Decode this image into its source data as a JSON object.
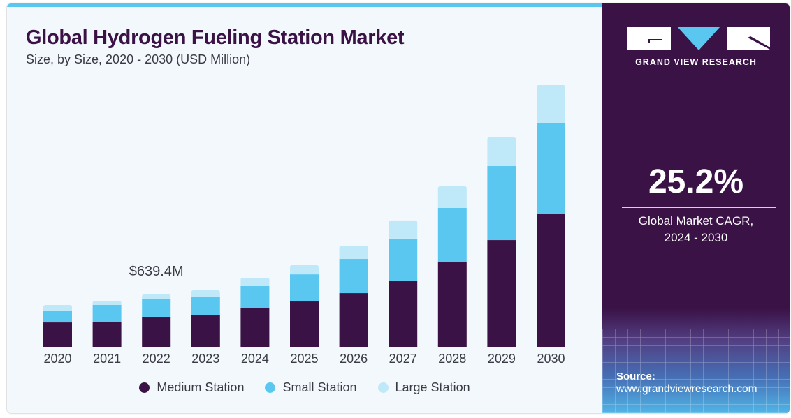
{
  "title": "Global Hydrogen Fueling Station Market",
  "subtitle": "Size, by Size, 2020 - 2030 (USD Million)",
  "brand": {
    "name": "GRAND VIEW RESEARCH",
    "accent": "#5ac7f0",
    "panel_color": "#3a1246"
  },
  "stat": {
    "value": "25.2%",
    "label_line1": "Global Market CAGR,",
    "label_line2": "2024 - 2030"
  },
  "source": {
    "heading": "Source:",
    "url": "www.grandviewresearch.com"
  },
  "chart_data": {
    "type": "bar",
    "stacked": true,
    "title": "Global Hydrogen Fueling Station Market",
    "subtitle": "Size, by Size, 2020 - 2030 (USD Million)",
    "xlabel": "",
    "ylabel": "",
    "categories": [
      "2020",
      "2021",
      "2022",
      "2023",
      "2024",
      "2025",
      "2026",
      "2027",
      "2028",
      "2029",
      "2030"
    ],
    "series": [
      {
        "name": "Medium Station",
        "color": "#3a1246",
        "values": [
          298,
          307,
          367,
          384,
          469,
          554,
          656,
          810,
          1032,
          1304,
          1620
        ]
      },
      {
        "name": "Small Station",
        "color": "#5ac7f0",
        "values": [
          145,
          205,
          213,
          230,
          273,
          332,
          418,
          512,
          665,
          904,
          1117
        ]
      },
      {
        "name": "Large Station",
        "color": "#bfe8f9",
        "values": [
          68,
          51,
          60,
          77,
          102,
          111,
          162,
          222,
          264,
          350,
          460
        ]
      }
    ],
    "annotations": [
      {
        "category": "2022",
        "text": "$639.4M"
      }
    ],
    "ylim": [
      0,
      3300
    ],
    "grid": false,
    "legend": "bottom-center"
  }
}
